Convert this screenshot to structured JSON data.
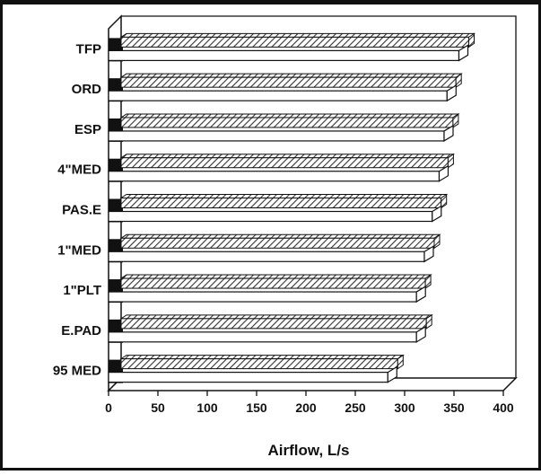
{
  "chart_data": {
    "type": "bar",
    "orientation": "horizontal",
    "categories": [
      "TFP",
      "ORD",
      "ESP",
      "4\"MED",
      "PAS.E",
      "1\"MED",
      "1\"PLT",
      "E.PAD",
      "95 MED"
    ],
    "series": [
      {
        "values": [
          365,
          352,
          349,
          344,
          337,
          330,
          321,
          322,
          293
        ]
      },
      {
        "values": [
          355,
          343,
          340,
          335,
          328,
          320,
          312,
          312,
          283
        ]
      }
    ],
    "xlabel": "Airflow, L/s",
    "xlim": [
      0,
      400
    ],
    "x_ticks": [
      0,
      50,
      100,
      150,
      200,
      250,
      300,
      350,
      400
    ],
    "style": "3d",
    "grid": false,
    "colors": {
      "front_bar": "#ffffff",
      "back_bar_hatch": "#555555",
      "floor": "#111111",
      "stroke": "#111111"
    }
  }
}
